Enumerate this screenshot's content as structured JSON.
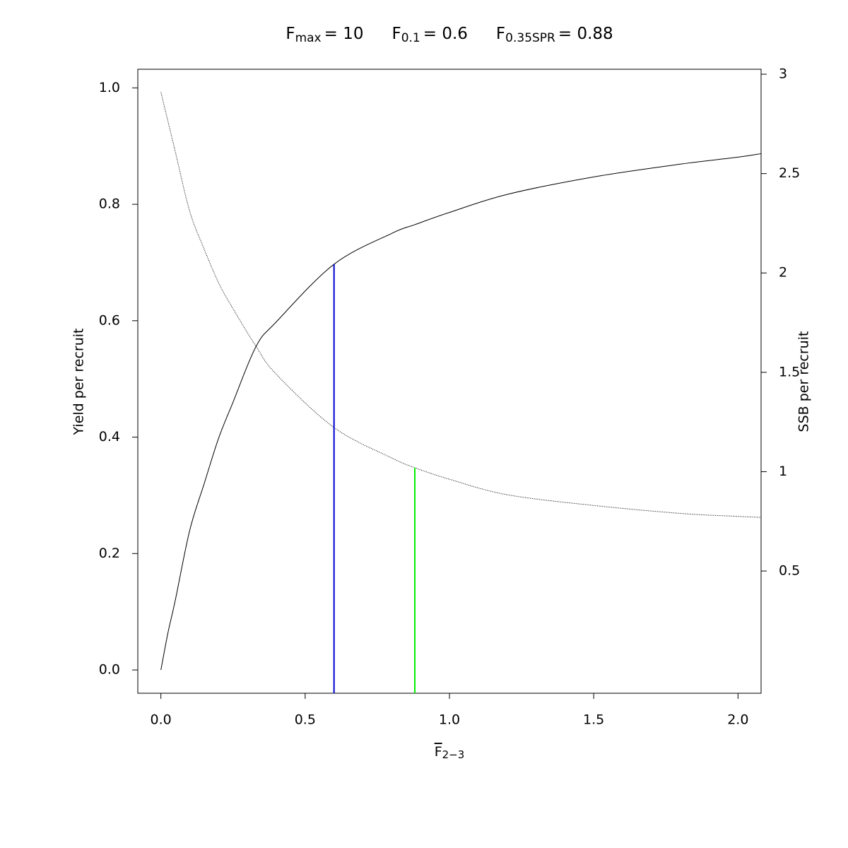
{
  "chart_data": {
    "type": "line",
    "title": [
      {
        "symbol": "F",
        "subscript": "max",
        "text": "= 10"
      },
      {
        "symbol": "F",
        "subscript": "0.1",
        "text": "= 0.6"
      },
      {
        "symbol": "F",
        "subscript": "0.35SPR",
        "text": "= 0.88"
      }
    ],
    "xlabel": {
      "symbol": "F",
      "subscript": "2−3"
    },
    "ylabel": "Yield per recruit",
    "y2label": "SSB per recruit",
    "x": [
      0,
      0.025,
      0.05,
      0.1,
      0.15,
      0.2,
      0.25,
      0.33,
      0.4,
      0.6,
      0.8,
      0.88,
      1.0,
      1.2,
      1.5,
      1.8,
      2.0,
      2.08
    ],
    "series": [
      {
        "name": "Yield per recruit",
        "color": "#000000",
        "dash": "solid",
        "axis": "y",
        "values": [
          0,
          0.065,
          0.12,
          0.24,
          0.32,
          0.398,
          0.46,
          0.556,
          0.598,
          0.697,
          0.75,
          0.765,
          0.786,
          0.817,
          0.847,
          0.869,
          0.881,
          0.887
        ]
      },
      {
        "name": "SSB per recruit",
        "color": "#000000",
        "dash": "dotted",
        "axis": "y2",
        "values": [
          2.91,
          2.76,
          2.61,
          2.31,
          2.12,
          1.95,
          1.82,
          1.63,
          1.49,
          1.222,
          1.069,
          1.02,
          0.962,
          0.884,
          0.83,
          0.79,
          0.775,
          0.77
        ]
      }
    ],
    "reference_lines": [
      {
        "x": 0.6,
        "y": 0.697,
        "axis": "y",
        "color": "#0000cd"
      },
      {
        "x": 0.88,
        "y": 1.02,
        "axis": "y2",
        "color": "#00ee00"
      }
    ],
    "xlim": [
      -0.08,
      2.08
    ],
    "xticks": [
      {
        "value": 0,
        "label": "0.0"
      },
      0.5,
      {
        "value": 1,
        "label": "1.0"
      },
      1.5,
      {
        "value": 2,
        "label": "2.0"
      }
    ],
    "ylim": [
      -0.04,
      1.032
    ],
    "yticks": [
      {
        "value": 0,
        "label": "0.0"
      },
      0.2,
      0.4,
      0.6,
      0.8,
      {
        "value": 1,
        "label": "1.0"
      }
    ],
    "y2lim": [
      -0.115,
      3.025
    ],
    "y2ticks": [
      0.5,
      1,
      1.5,
      2,
      2.5,
      3
    ]
  }
}
